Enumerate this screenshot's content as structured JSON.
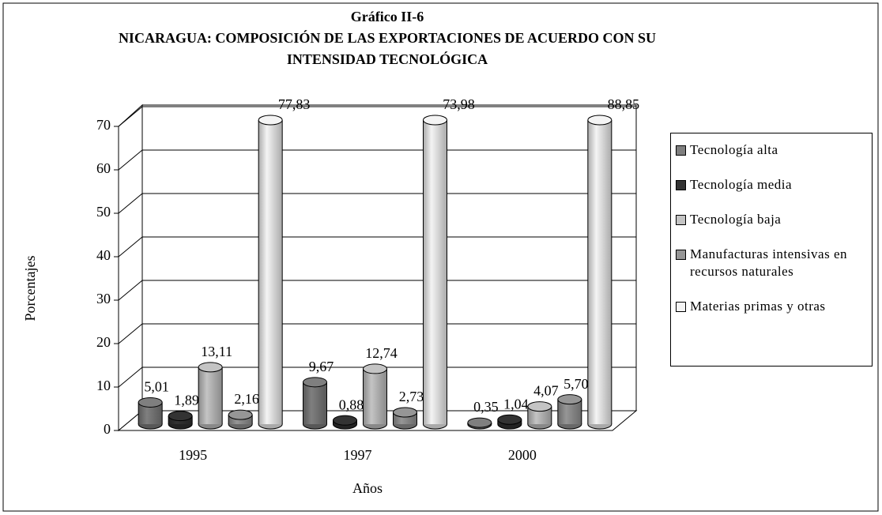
{
  "chart_data": {
    "type": "bar3d",
    "title": "Gráfico II-6",
    "subtitle": "NICARAGUA: COMPOSICIÓN DE LAS EXPORTACIONES DE ACUERDO CON SU INTENSIDAD TECNOLÓGICA",
    "x_label": "Años",
    "y_label": "Porcentajes",
    "categories": [
      "1995",
      "1997",
      "2000"
    ],
    "ylim": [
      0,
      70
    ],
    "yticks": [
      0,
      10,
      20,
      30,
      40,
      50,
      60,
      70
    ],
    "grid": true,
    "legend": "right",
    "series": [
      {
        "name": "Tecnología alta",
        "color": "#7f7f7f",
        "values": [
          5.01,
          9.67,
          0.35
        ],
        "value_labels": [
          "5,01",
          "9,67",
          "0,35"
        ]
      },
      {
        "name": "Tecnología media",
        "color": "#333333",
        "values": [
          1.89,
          0.88,
          1.04
        ],
        "value_labels": [
          "1,89",
          "0,88",
          "1,04"
        ]
      },
      {
        "name": "Tecnología baja",
        "color": "#c4c4c4",
        "values": [
          13.11,
          12.74,
          4.07
        ],
        "value_labels": [
          "13,11",
          "12,74",
          "4,07"
        ]
      },
      {
        "name": "Manufacturas intensivas en recursos naturales",
        "color": "#969696",
        "values": [
          2.16,
          2.73,
          5.7
        ],
        "value_labels": [
          "2,16",
          "2,73",
          "5,70"
        ]
      },
      {
        "name": "Materias primas y otras",
        "color": "#f4f4f4",
        "values": [
          77.83,
          73.98,
          88.85
        ],
        "value_labels": [
          "77,83",
          "73,98",
          "88,85"
        ]
      }
    ]
  }
}
